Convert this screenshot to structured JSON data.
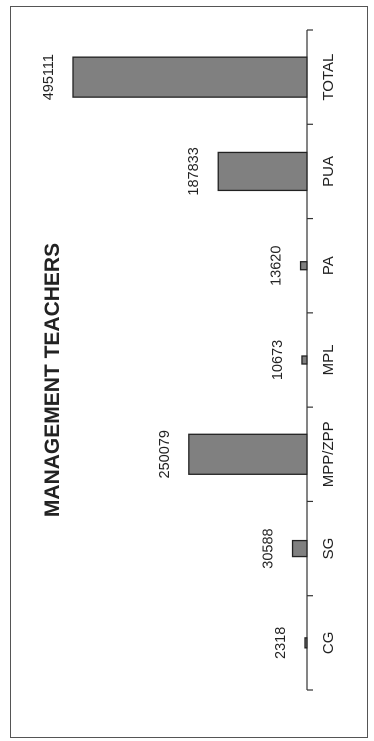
{
  "chart_data": {
    "type": "bar",
    "orientation": "horizontal",
    "title": "MANAGEMENT TEACHERS",
    "categories": [
      "CG",
      "SG",
      "MPP/ZPP",
      "MPL",
      "PA",
      "PUA",
      "TOTAL"
    ],
    "values": [
      2318,
      30588,
      250079,
      10673,
      13620,
      187833,
      495111
    ],
    "data_labels": [
      "2318",
      "30588",
      "250079",
      "10673",
      "13620",
      "187833",
      "495111"
    ],
    "xlabel": "",
    "ylabel": "",
    "vlim": [
      0,
      520000
    ],
    "grid": false,
    "legend": "none",
    "bar_color": "#808080"
  }
}
